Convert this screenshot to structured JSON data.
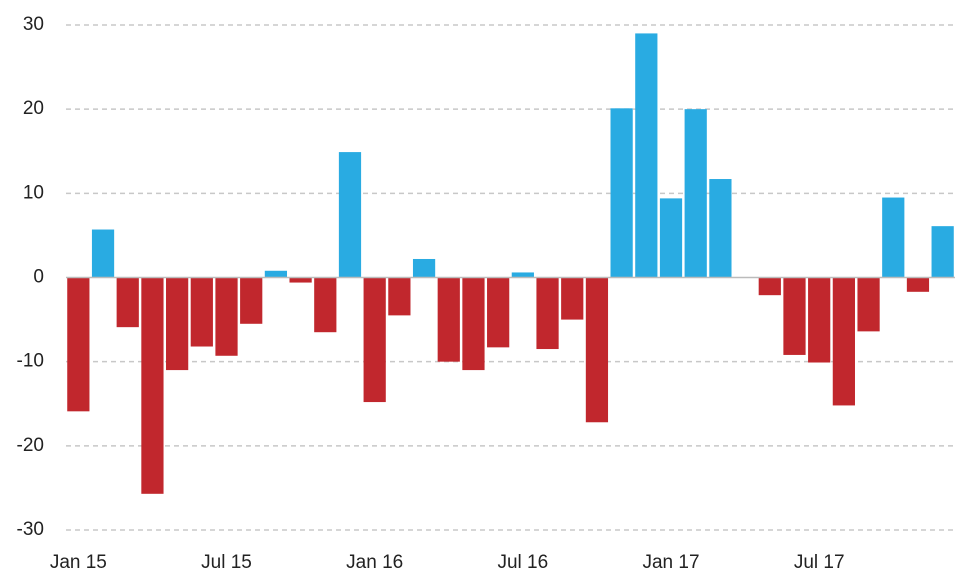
{
  "chart_data": {
    "type": "bar",
    "categories": [
      "Jan 15",
      null,
      null,
      null,
      null,
      null,
      "Jul 15",
      null,
      null,
      null,
      null,
      null,
      "Jan 16",
      null,
      null,
      null,
      null,
      null,
      "Jul 16",
      null,
      null,
      null,
      null,
      null,
      "Jan 17",
      null,
      null,
      null,
      null,
      null,
      "Jul 17",
      null,
      null,
      null,
      null,
      null
    ],
    "values": [
      -15.9,
      5.7,
      -5.9,
      -25.7,
      -11,
      -8.2,
      -9.3,
      -5.5,
      0.8,
      -0.6,
      -6.5,
      14.9,
      -14.8,
      -4.5,
      2.2,
      -10,
      -11,
      -8.3,
      0.6,
      -8.5,
      -5,
      -17.2,
      20.1,
      29,
      9.4,
      20,
      11.7,
      0,
      -2.1,
      -9.2,
      -10.1,
      -15.2,
      -6.4,
      9.5,
      -1.7,
      6.1
    ],
    "positive_color": "#29abe2",
    "negative_color": "#c1272d",
    "ylim": [
      -30,
      30
    ],
    "yticks": [
      -30,
      -20,
      -10,
      0,
      10,
      20,
      30
    ],
    "grid": true
  }
}
